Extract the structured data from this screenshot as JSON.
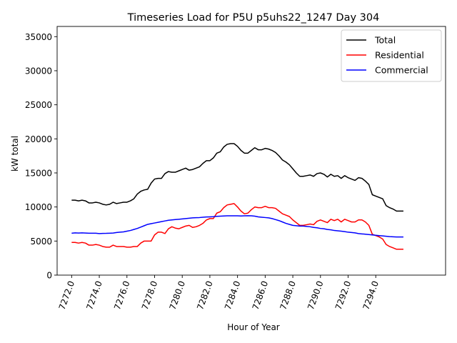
{
  "chart_data": {
    "type": "line",
    "title": "Timeseries Load for P5U p5uhs22_1247  Day 304",
    "xlabel": "Hour of Year",
    "ylabel": "kW total",
    "xlim": [
      7270.95,
      7299.05
    ],
    "ylim": [
      0,
      36500
    ],
    "xticks": [
      7272,
      7274,
      7276,
      7278,
      7280,
      7282,
      7284,
      7286,
      7288,
      7290,
      7292,
      7294
    ],
    "xtick_labels": [
      "7272.0",
      "7274.0",
      "7276.0",
      "7278.0",
      "7280.0",
      "7282.0",
      "7284.0",
      "7286.0",
      "7288.0",
      "7290.0",
      "7292.0",
      "7294.0"
    ],
    "yticks": [
      0,
      5000,
      10000,
      15000,
      20000,
      25000,
      30000,
      35000
    ],
    "ytick_labels": [
      "0",
      "5000",
      "10000",
      "15000",
      "20000",
      "25000",
      "30000",
      "35000"
    ],
    "legend_position": "top-right",
    "x": [
      7272.0,
      7272.25,
      7272.5,
      7272.75,
      7273.0,
      7273.25,
      7273.5,
      7273.75,
      7274.0,
      7274.25,
      7274.5,
      7274.75,
      7275.0,
      7275.25,
      7275.5,
      7275.75,
      7276.0,
      7276.25,
      7276.5,
      7276.75,
      7277.0,
      7277.25,
      7277.5,
      7277.75,
      7278.0,
      7278.25,
      7278.5,
      7278.75,
      7279.0,
      7279.25,
      7279.5,
      7279.75,
      7280.0,
      7280.25,
      7280.5,
      7280.75,
      7281.0,
      7281.25,
      7281.5,
      7281.75,
      7282.0,
      7282.25,
      7282.5,
      7282.75,
      7283.0,
      7283.25,
      7283.5,
      7283.75,
      7284.0,
      7284.25,
      7284.5,
      7284.75,
      7285.0,
      7285.25,
      7285.5,
      7285.75,
      7286.0,
      7286.25,
      7286.5,
      7286.75,
      7287.0,
      7287.25,
      7287.5,
      7287.75,
      7288.0,
      7288.25,
      7288.5,
      7288.75,
      7289.0,
      7289.25,
      7289.5,
      7289.75,
      7290.0,
      7290.25,
      7290.5,
      7290.75,
      7291.0,
      7291.25,
      7291.5,
      7291.75,
      7292.0,
      7292.25,
      7292.5,
      7292.75,
      7293.0,
      7293.25,
      7293.5,
      7293.75,
      7294.0,
      7294.25,
      7294.5,
      7294.75,
      7295.0,
      7295.25,
      7295.5,
      7295.75,
      7296.0
    ],
    "series": [
      {
        "name": "Total",
        "color": "#000000",
        "values": [
          11000,
          11000,
          10900,
          11000,
          10900,
          10600,
          10600,
          10700,
          10600,
          10400,
          10300,
          10400,
          10700,
          10500,
          10600,
          10700,
          10700,
          10900,
          11200,
          11900,
          12300,
          12500,
          12600,
          13500,
          14100,
          14200,
          14200,
          14900,
          15200,
          15100,
          15100,
          15300,
          15500,
          15700,
          15400,
          15500,
          15700,
          15900,
          16400,
          16800,
          16800,
          17200,
          17900,
          18100,
          18800,
          19200,
          19300,
          19300,
          18900,
          18300,
          17900,
          17900,
          18300,
          18700,
          18400,
          18400,
          18600,
          18500,
          18300,
          18000,
          17500,
          16900,
          16600,
          16200,
          15600,
          15000,
          14500,
          14500,
          14600,
          14700,
          14500,
          14900,
          15000,
          14800,
          14400,
          14800,
          14500,
          14600,
          14200,
          14600,
          14300,
          14100,
          13900,
          14300,
          14200,
          13800,
          13300,
          11800,
          11600,
          11400,
          11200,
          10200,
          9900,
          9700,
          9400,
          9400,
          9400
        ]
      },
      {
        "name": "Residential",
        "color": "#ff0000",
        "values": [
          4800,
          4800,
          4700,
          4800,
          4700,
          4400,
          4400,
          4500,
          4400,
          4200,
          4100,
          4100,
          4400,
          4200,
          4200,
          4200,
          4100,
          4100,
          4200,
          4200,
          4700,
          5000,
          5000,
          5000,
          5900,
          6300,
          6300,
          6100,
          6800,
          7100,
          6900,
          6800,
          7000,
          7200,
          7300,
          7000,
          7100,
          7300,
          7600,
          8100,
          8300,
          8300,
          9100,
          9300,
          9900,
          10300,
          10400,
          10500,
          10000,
          9400,
          9000,
          9100,
          9600,
          10000,
          9900,
          9900,
          10100,
          9900,
          9900,
          9800,
          9400,
          9000,
          8800,
          8600,
          8100,
          7700,
          7300,
          7300,
          7400,
          7500,
          7400,
          7900,
          8100,
          7900,
          7700,
          8200,
          8000,
          8200,
          7800,
          8200,
          8000,
          7800,
          7800,
          8100,
          8100,
          7800,
          7300,
          6000,
          5800,
          5600,
          5300,
          4500,
          4200,
          4000,
          3800,
          3800,
          3800
        ]
      },
      {
        "name": "Commercial",
        "color": "#0000ff",
        "values": [
          6150,
          6200,
          6180,
          6200,
          6180,
          6150,
          6150,
          6150,
          6100,
          6120,
          6130,
          6150,
          6180,
          6250,
          6300,
          6350,
          6450,
          6550,
          6700,
          6850,
          7050,
          7250,
          7450,
          7550,
          7650,
          7750,
          7850,
          7950,
          8050,
          8100,
          8150,
          8200,
          8250,
          8300,
          8350,
          8400,
          8430,
          8450,
          8500,
          8530,
          8550,
          8580,
          8620,
          8650,
          8680,
          8700,
          8700,
          8700,
          8700,
          8680,
          8700,
          8720,
          8700,
          8650,
          8550,
          8500,
          8450,
          8400,
          8300,
          8150,
          8000,
          7800,
          7600,
          7450,
          7300,
          7250,
          7200,
          7200,
          7150,
          7100,
          7000,
          6950,
          6850,
          6800,
          6700,
          6650,
          6550,
          6500,
          6450,
          6380,
          6300,
          6250,
          6200,
          6100,
          6050,
          6000,
          5950,
          5900,
          5850,
          5800,
          5750,
          5700,
          5650,
          5630,
          5600,
          5600,
          5600
        ]
      }
    ]
  }
}
